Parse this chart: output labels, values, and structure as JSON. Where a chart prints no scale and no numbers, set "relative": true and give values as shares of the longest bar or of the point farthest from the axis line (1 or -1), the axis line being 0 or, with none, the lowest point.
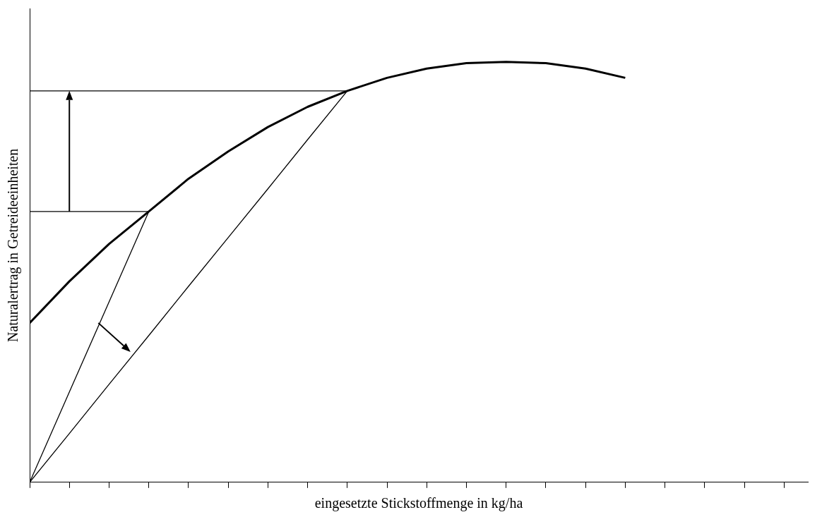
{
  "chart_data": {
    "type": "line",
    "relative": true,
    "xlabel": "eingesetzte Stickstoffmenge in kg/ha",
    "ylabel": "Naturalertrag in Getreideeinheiten",
    "categories": [
      null,
      null,
      null,
      null,
      null,
      null,
      null,
      null,
      null,
      null,
      null,
      null,
      null,
      null,
      null,
      null,
      null,
      null,
      null,
      null
    ],
    "series": [
      {
        "color": "#000000",
        "values": [
          0.379,
          0.478,
          0.567,
          0.644,
          0.722,
          0.787,
          0.845,
          0.893,
          0.931,
          0.962,
          0.984,
          0.997,
          1,
          0.997,
          0.984,
          0.962,
          null,
          null,
          null,
          null
        ]
      },
      {
        "color": "#000000",
        "values": [
          0,
          0.215,
          0.429,
          0.644,
          null,
          null,
          null,
          null,
          null,
          null,
          null,
          null,
          null,
          null,
          null,
          null,
          null,
          null,
          null,
          null
        ]
      },
      {
        "color": "#000000",
        "values": [
          0,
          0.116,
          0.233,
          0.349,
          0.466,
          0.582,
          0.698,
          0.815,
          0.931,
          null,
          null,
          null,
          null,
          null,
          null,
          null,
          null,
          null,
          null,
          null
        ]
      },
      {
        "color": "#000000",
        "values": [
          0.644,
          0.644,
          0.644,
          0.644,
          null,
          null,
          null,
          null,
          null,
          null,
          null,
          null,
          null,
          null,
          null,
          null,
          null,
          null,
          null,
          null
        ]
      },
      {
        "color": "#000000",
        "values": [
          0.931,
          0.931,
          0.931,
          0.931,
          0.931,
          0.931,
          0.931,
          0.931,
          0.931,
          null,
          null,
          null,
          null,
          null,
          null,
          null,
          null,
          null,
          null,
          null
        ]
      }
    ],
    "grid": false,
    "legend": false,
    "marker": "none",
    "line_style": "solid"
  }
}
